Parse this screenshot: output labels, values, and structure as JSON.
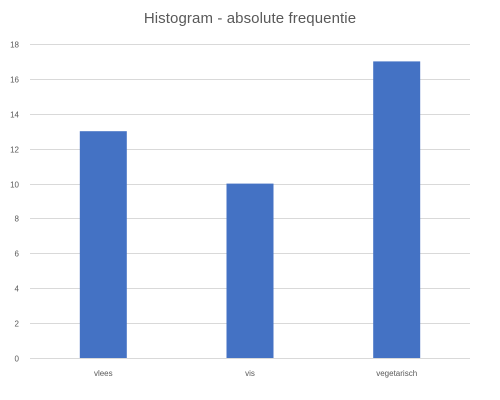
{
  "chart_data": {
    "type": "bar",
    "title": "Histogram - absolute frequentie",
    "categories": [
      "vlees",
      "vis",
      "vegetarisch"
    ],
    "values": [
      13,
      10,
      17
    ],
    "ylim": [
      0,
      18
    ],
    "yticks": [
      0,
      2,
      4,
      6,
      8,
      10,
      12,
      14,
      16,
      18
    ],
    "xlabel": "",
    "ylabel": "",
    "grid": true,
    "legend": "none",
    "bar_color": "#4472c4",
    "grid_color": "#d9d9d9",
    "text_color": "#595959"
  }
}
